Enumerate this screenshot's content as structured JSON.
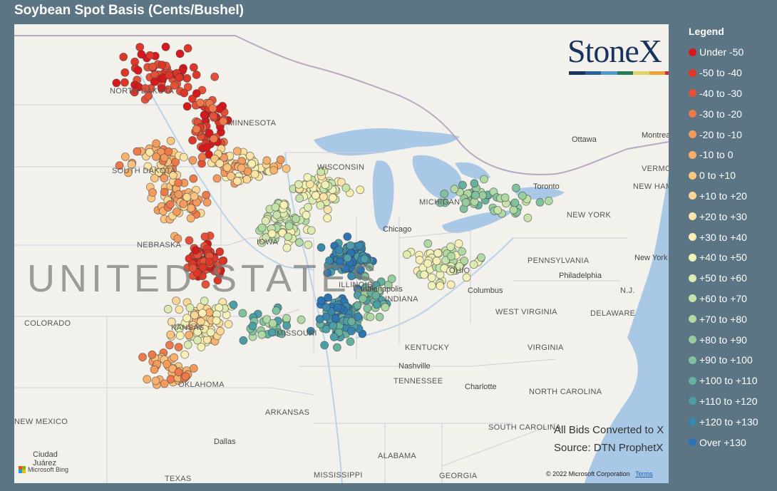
{
  "title": "Soybean Spot Basis (Cents/Bushel)",
  "legend": {
    "title": "Legend",
    "items": [
      {
        "label": "Under -50",
        "color": "#d7191c"
      },
      {
        "label": "-50 to -40",
        "color": "#df3629"
      },
      {
        "label": "-40 to -30",
        "color": "#e55138"
      },
      {
        "label": "-30 to -20",
        "color": "#ee7a4b"
      },
      {
        "label": "-20 to -10",
        "color": "#f49a5d"
      },
      {
        "label": "-10 to 0",
        "color": "#f8b06c"
      },
      {
        "label": "0 to +10",
        "color": "#fbc47f"
      },
      {
        "label": "+10 to +20",
        "color": "#fcd692"
      },
      {
        "label": "+20 to +30",
        "color": "#fde4a6"
      },
      {
        "label": "+30 to +40",
        "color": "#fbefb4"
      },
      {
        "label": "+40 to +50",
        "color": "#f1f2b8"
      },
      {
        "label": "+50 to +60",
        "color": "#dcebb0"
      },
      {
        "label": "+60 to +70",
        "color": "#c7e3aa"
      },
      {
        "label": "+70 to +80",
        "color": "#b0d9a4"
      },
      {
        "label": "+80 to +90",
        "color": "#98ce9f"
      },
      {
        "label": "+90 to +100",
        "color": "#81c19e"
      },
      {
        "label": "+100 to +110",
        "color": "#68b19f"
      },
      {
        "label": "+110 to +120",
        "color": "#4d9ea6"
      },
      {
        "label": "+120 to +130",
        "color": "#3a88ad"
      },
      {
        "label": "Over +130",
        "color": "#2c74b4"
      }
    ]
  },
  "logo": {
    "text": "StoneX",
    "tm": "™",
    "bar_colors": [
      "#17335e",
      "#2b5f95",
      "#4e9bc8",
      "#2a7b5a",
      "#e3d36b",
      "#e9a13a",
      "#c8323a"
    ]
  },
  "note": {
    "line1": "All Bids Converted to X",
    "line2": "Source: DTN ProphetX"
  },
  "credits": {
    "copyright": "© 2022 Microsoft Corporation",
    "terms": "Terms",
    "bing": "Microsoft Bing"
  },
  "map": {
    "water_color": "#a9c8e6",
    "country_label": "UNITED STATES",
    "places": {
      "north_dakota": "NORTH DAKOTA",
      "minnesota": "MINNESOTA",
      "south_dakota": "SOUTH DAKOTA",
      "wisconsin": "WISCONSIN",
      "michigan": "MICHIGAN",
      "nebraska": "NEBRASKA",
      "iowa": "IOWA",
      "illinois": "ILLINOIS",
      "indiana": "INDIANA",
      "ohio": "OHIO",
      "missouri": "MISSOURI",
      "kansas": "KANSAS",
      "colorado": "COLORADO",
      "oklahoma": "OKLAHOMA",
      "arkansas": "ARKANSAS",
      "texas": "TEXAS",
      "new_mexico": "NEW MEXICO",
      "kentucky": "KENTUCKY",
      "tennessee": "TENNESSEE",
      "alabama": "ALABAMA",
      "mississippi": "MISSISSIPPI",
      "georgia": "GEORGIA",
      "south_carolina": "SOUTH CAROLINA",
      "north_carolina": "NORTH CAROLINA",
      "virginia": "VIRGINIA",
      "west_virginia": "WEST VIRGINIA",
      "pennsylvania": "PENNSYLVANIA",
      "new_york": "NEW YORK",
      "vermont": "VERMONT",
      "new_hampshire": "NEW HAMPSHIRE",
      "nj": "N.J.",
      "delaware": "DELAWARE",
      "ottawa": "Ottawa",
      "montreal": "Montreal",
      "toronto": "Toronto",
      "chicago": "Chicago",
      "columbus": "Columbus",
      "indianapolis": "Indianapolis",
      "nashville": "Nashville",
      "charlotte": "Charlotte",
      "philadelphia": "Philadelphia",
      "new_york_city": "New York",
      "dallas": "Dallas",
      "ciudad_juarez": "Ciudad Juárez"
    }
  }
}
